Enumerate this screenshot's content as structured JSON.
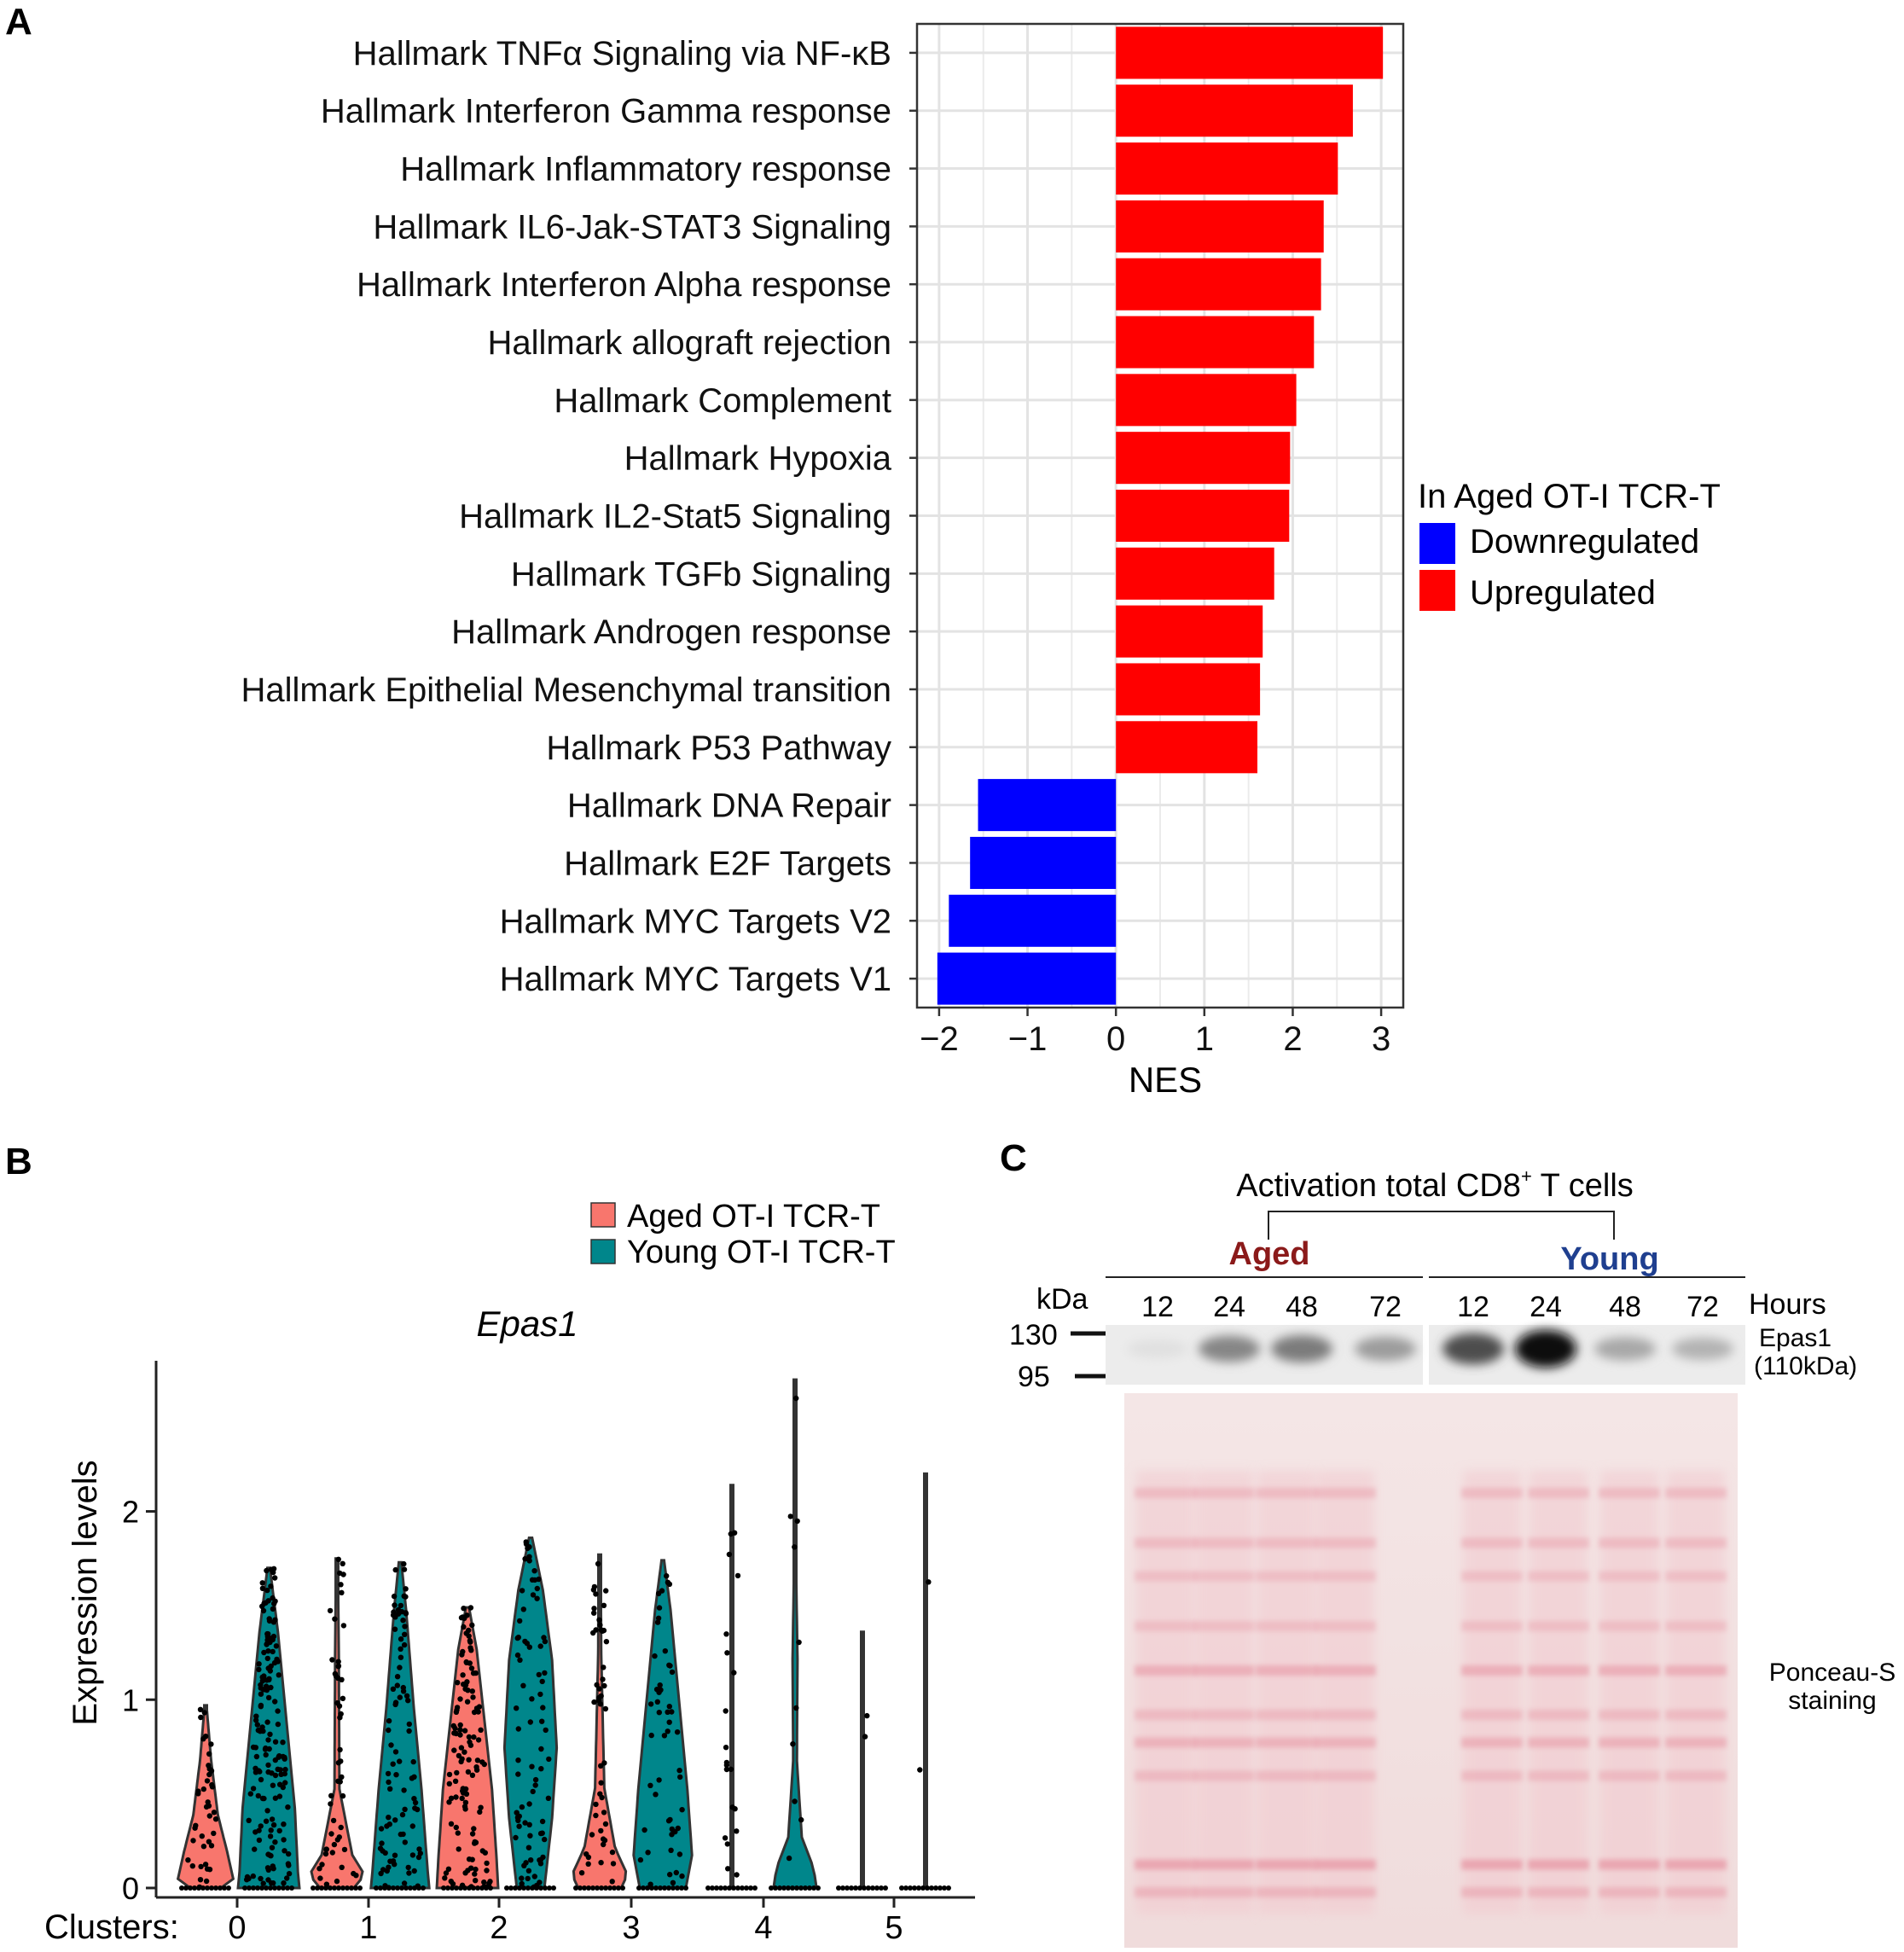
{
  "panel_labels": {
    "a": "A",
    "b": "B",
    "c": "C"
  },
  "colors": {
    "up": "#ff0000",
    "down": "#0000ff",
    "aged": "#f8766d",
    "young": "#00868b",
    "aged_text": "#8b1a1a",
    "young_text": "#1f3f8f"
  },
  "chart_data": [
    {
      "type": "bar",
      "orientation": "horizontal",
      "categories": [
        "Hallmark TNFα Signaling via NF-κB",
        "Hallmark Interferon Gamma response",
        "Hallmark Inflammatory response",
        "Hallmark IL6-Jak-STAT3 Signaling",
        "Hallmark Interferon Alpha response",
        "Hallmark allograft rejection",
        "Hallmark Complement",
        "Hallmark Hypoxia",
        "Hallmark IL2-Stat5 Signaling",
        "Hallmark TGFb Signaling",
        "Hallmark Androgen response",
        "Hallmark Epithelial Mesenchymal transition",
        "Hallmark P53 Pathway",
        "Hallmark DNA Repair",
        "Hallmark E2F Targets",
        "Hallmark MYC Targets V2",
        "Hallmark MYC Targets V1"
      ],
      "values": [
        3.02,
        2.68,
        2.51,
        2.35,
        2.32,
        2.24,
        2.04,
        1.97,
        1.96,
        1.79,
        1.66,
        1.63,
        1.6,
        -1.56,
        -1.65,
        -1.89,
        -2.02
      ],
      "groups": [
        "Upregulated",
        "Upregulated",
        "Upregulated",
        "Upregulated",
        "Upregulated",
        "Upregulated",
        "Upregulated",
        "Upregulated",
        "Upregulated",
        "Upregulated",
        "Upregulated",
        "Upregulated",
        "Upregulated",
        "Downregulated",
        "Downregulated",
        "Downregulated",
        "Downregulated"
      ],
      "xlabel": "NES",
      "xlim": [
        -2.25,
        3.25
      ],
      "xticks": [
        -2,
        -1,
        0,
        1,
        2,
        3
      ],
      "xtick_labels": [
        "−2",
        "−1",
        "0",
        "1",
        "2",
        "3"
      ],
      "grid": true,
      "legend_title": "In Aged OT-I TCR-T",
      "legend": [
        "Downregulated",
        "Upregulated"
      ],
      "legend_position": "right"
    },
    {
      "type": "violin",
      "title": "Epas1",
      "ylabel": "Expression levels",
      "xlabel_prefix": "Clusters:",
      "categories": [
        "0",
        "1",
        "2",
        "3",
        "4",
        "5"
      ],
      "ylim": [
        -0.05,
        2.8
      ],
      "yticks": [
        0,
        1,
        2
      ],
      "legend": [
        "Aged OT-I TCR-T",
        "Young OT-I TCR-T"
      ],
      "legend_position": "top-right",
      "series": [
        {
          "name": "Aged OT-I TCR-T",
          "max": [
            0.97,
            1.75,
            1.49,
            1.77,
            2.14,
            1.36
          ]
        },
        {
          "name": "Young OT-I TCR-T",
          "max": [
            1.7,
            1.73,
            1.86,
            1.74,
            2.7,
            2.2
          ]
        }
      ]
    }
  ],
  "blot": {
    "title": "Activation total CD8",
    "title_sup": "+",
    "title_suffix": " T cells",
    "groups": [
      "Aged",
      "Young"
    ],
    "kda_label": "kDa",
    "lanes": [
      "12",
      "24",
      "48",
      "72",
      "12",
      "24",
      "48",
      "72"
    ],
    "hours_label": "Hours",
    "markers": [
      "130",
      "95"
    ],
    "band_label_1": "Epas1",
    "band_label_2": "(110kDa)",
    "stain_label_1": "Ponceau-S",
    "stain_label_2": "staining",
    "band_intensity": [
      0.05,
      0.45,
      0.5,
      0.35,
      0.7,
      1.0,
      0.3,
      0.25
    ]
  }
}
